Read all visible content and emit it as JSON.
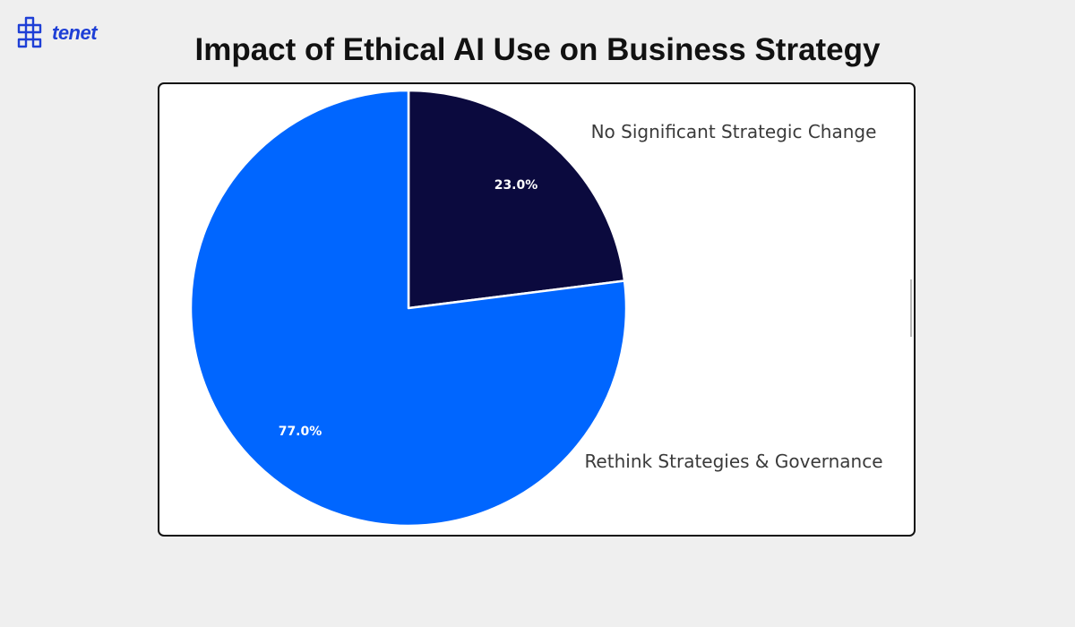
{
  "brand": {
    "name": "tenet",
    "color": "#1e3fd6"
  },
  "chart_data": {
    "type": "pie",
    "title": "Impact of Ethical AI Use on Business Strategy",
    "start_angle_deg": 90,
    "direction": "clockwise",
    "slices": [
      {
        "label": "No Significant Strategic Change",
        "value": 23.0,
        "pct_label": "23.0%",
        "color": "#0b0a3e"
      },
      {
        "label": "Rethink Strategies & Governance",
        "value": 77.0,
        "pct_label": "77.0%",
        "color": "#0066ff"
      }
    ],
    "legend": "none",
    "grid": false
  }
}
